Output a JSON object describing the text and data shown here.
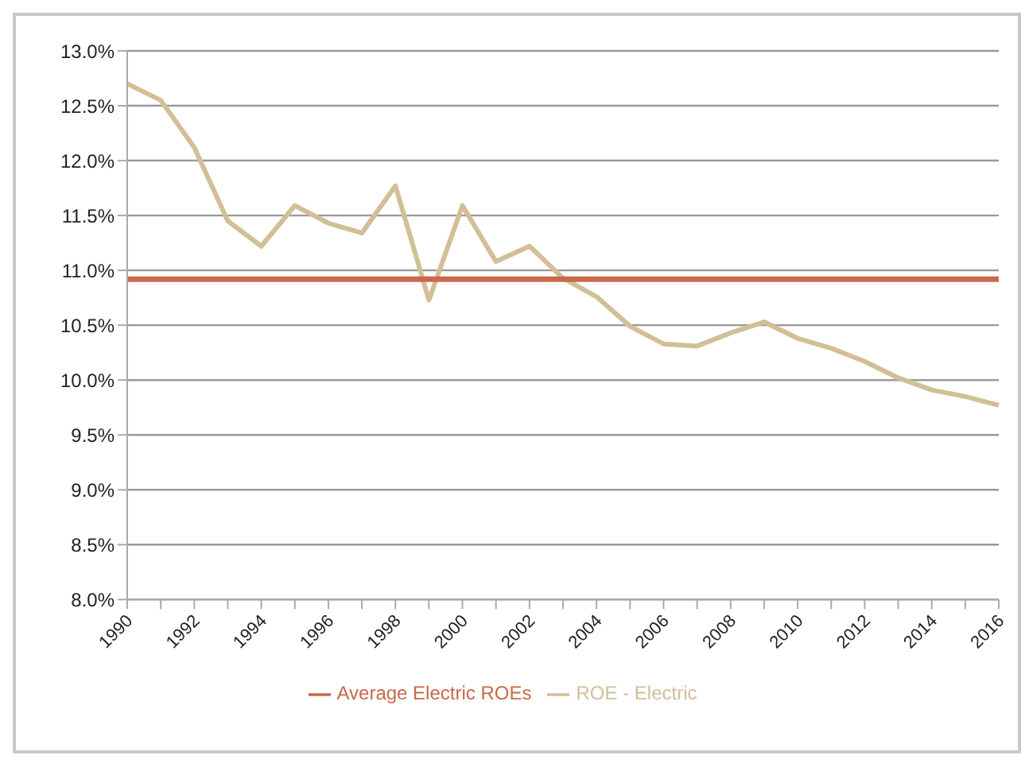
{
  "chart_data": {
    "type": "line",
    "categories": [
      "1990",
      null,
      "1992",
      null,
      "1994",
      null,
      "1996",
      null,
      "1998",
      null,
      "2000",
      null,
      "2002",
      null,
      "2004",
      null,
      "2006",
      null,
      "2008",
      null,
      "2010",
      null,
      "2012",
      null,
      "2014",
      null,
      "2016"
    ],
    "series": [
      {
        "name": "ROE - Electric",
        "color": "#d2bf96",
        "values": [
          12.7,
          12.55,
          12.12,
          11.45,
          11.22,
          11.59,
          11.43,
          11.34,
          11.77,
          10.73,
          11.59,
          11.08,
          11.22,
          10.93,
          10.76,
          10.49,
          10.33,
          10.31,
          10.43,
          10.53,
          10.38,
          10.29,
          10.17,
          10.02,
          9.91,
          9.85,
          9.77
        ]
      },
      {
        "name": "Average Electric ROEs",
        "color": "#c8694a",
        "values": [
          10.92,
          10.92,
          10.92,
          10.92,
          10.92,
          10.92,
          10.92,
          10.92,
          10.92,
          10.92,
          10.92,
          10.92,
          10.92,
          10.92,
          10.92,
          10.92,
          10.92,
          10.92,
          10.92,
          10.92,
          10.92,
          10.92,
          10.92,
          10.92,
          10.92,
          10.92,
          10.92
        ]
      }
    ],
    "ylim": [
      8,
      13
    ],
    "yticks": [
      {
        "value": 8,
        "label": "8.0%"
      },
      {
        "value": 8.5,
        "label": "8.5%"
      },
      {
        "value": 9,
        "label": "9.0%"
      },
      {
        "value": 9.5,
        "label": "9.5%"
      },
      {
        "value": 10,
        "label": "10.0%"
      },
      {
        "value": 10.5,
        "label": "10.5%"
      },
      {
        "value": 11,
        "label": "11.0%"
      },
      {
        "value": 11.5,
        "label": "11.5%"
      },
      {
        "value": 12,
        "label": "12.0%"
      },
      {
        "value": 12.5,
        "label": "12.5%"
      },
      {
        "value": 13,
        "label": "13.0%"
      }
    ],
    "grid": "y",
    "legend": "bottom",
    "marker": "none",
    "line_style": "solid"
  }
}
